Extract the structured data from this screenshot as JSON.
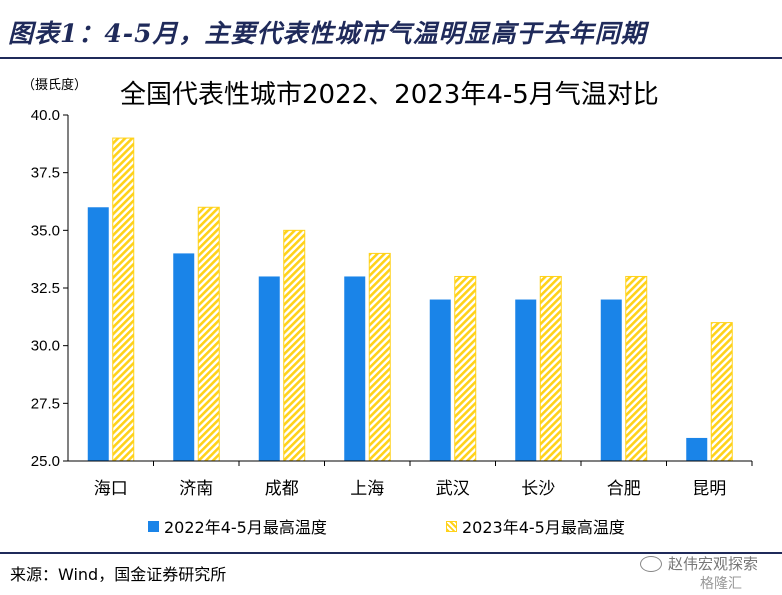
{
  "figure_title": "图表1：4-5月，主要代表性城市气温明显高于去年同期",
  "unit_label": "（摄氏度）",
  "source": "来源：Wind，国金证券研究所",
  "watermark": {
    "wechat": "赵伟宏观探索",
    "site": "格隆汇",
    "wechat_icon": "wechat-icon"
  },
  "colors": {
    "series_2022": "#1a84e8",
    "series_2023": "#ffd21a",
    "title": "#1f2a5a"
  },
  "chart_data": {
    "type": "bar",
    "title": "全国代表性城市2022、2023年4-5月气温对比",
    "ylabel": "（摄氏度）",
    "ylim": [
      25.0,
      40.0
    ],
    "yticks": [
      "25.0",
      "27.5",
      "30.0",
      "32.5",
      "35.0",
      "37.5",
      "40.0"
    ],
    "categories": [
      "海口",
      "济南",
      "成都",
      "上海",
      "武汉",
      "长沙",
      "合肥",
      "昆明"
    ],
    "series": [
      {
        "name": "2022年4-5月最高温度",
        "values": [
          36,
          34,
          33,
          33,
          32,
          32,
          32,
          26
        ]
      },
      {
        "name": "2023年4-5月最高温度",
        "values": [
          39,
          36,
          35,
          34,
          33,
          33,
          33,
          31
        ]
      }
    ],
    "legend": "bottom",
    "grid": false
  }
}
